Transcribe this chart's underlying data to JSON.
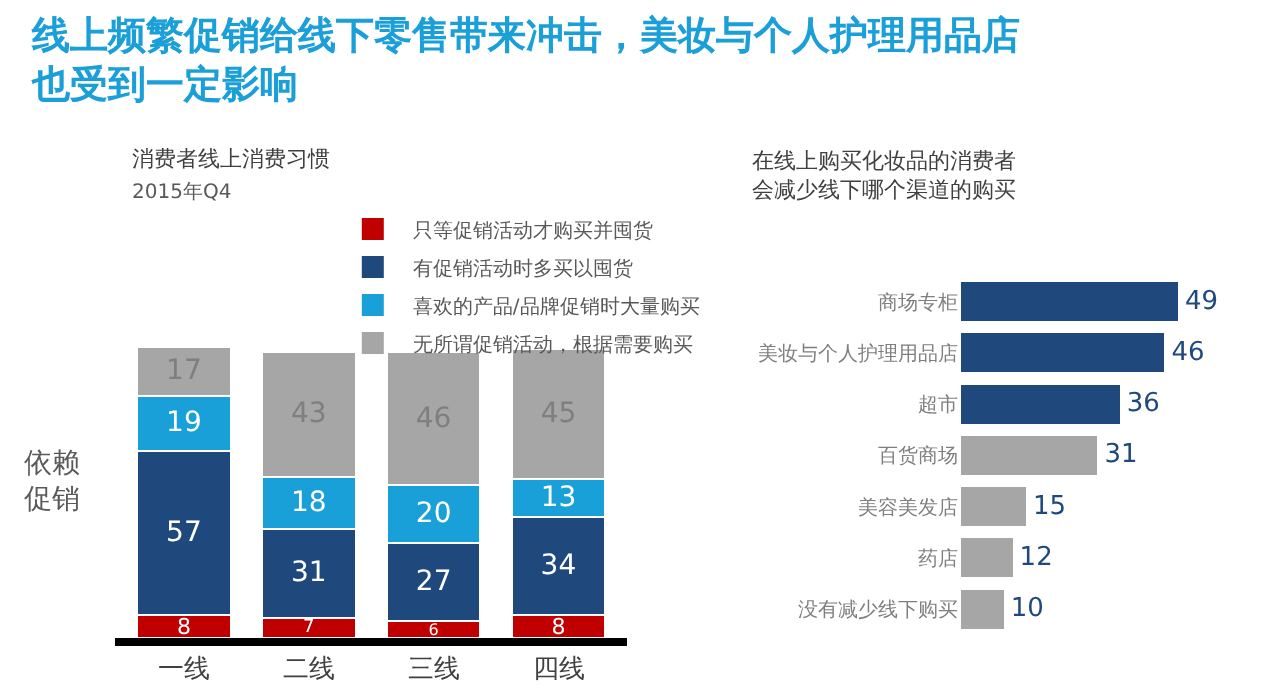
{
  "chart_data": [
    {
      "type": "bar",
      "title": "线上频繁促销给线下零售带来冲击，美妆与个人护理用品店也受到一定影响",
      "subtitle": "消费者线上消费习惯",
      "annotations": [
        "2015年Q4",
        "依赖促销"
      ],
      "categories": [
        "一线",
        "二线",
        "三线",
        "四线"
      ],
      "stacked": true,
      "data_labels": true,
      "legend": "top",
      "series": [
        {
          "name": "只等促销活动才购买并囤货",
          "color": "#c00000",
          "values": [
            8,
            7,
            6,
            8
          ]
        },
        {
          "name": "有促销活动时多买以囤货",
          "color": "#1f497d",
          "values": [
            57,
            31,
            27,
            34
          ]
        },
        {
          "name": "喜欢的产品/品牌促销时大量购买",
          "color": "#1aa0d8",
          "values": [
            19,
            18,
            20,
            13
          ]
        },
        {
          "name": "无所谓促销活动，根据需要购买",
          "color": "#a6a6a6",
          "values": [
            17,
            43,
            46,
            45
          ]
        }
      ]
    },
    {
      "type": "bar",
      "orientation": "horizontal",
      "title": "在线上购买化妆品的消费者会减少线下哪个渠道的购买",
      "data_labels": true,
      "categories": [
        "商场专柜",
        "美妆与个人护理用品店",
        "超市",
        "百货商场",
        "美容美发店",
        "药店",
        "没有减少线下购买"
      ],
      "values": [
        49,
        46,
        36,
        31,
        15,
        12,
        10
      ],
      "colors": [
        "#1f497d",
        "#1f497d",
        "#1f497d",
        "#a6a6a6",
        "#a6a6a6",
        "#a6a6a6",
        "#a6a6a6"
      ]
    }
  ]
}
